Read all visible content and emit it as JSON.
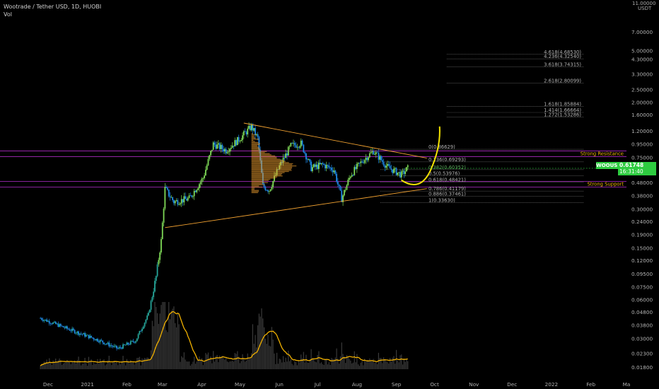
{
  "header": {
    "title": "Wootrade / Tether USD, 1D, HUOBI",
    "indicator": "Vol"
  },
  "price_axis": {
    "currency": "USDT",
    "top_value": "11.00000"
  },
  "ticker": {
    "symbol": "WOOUSDT",
    "last_price": "0.61748",
    "countdown": "16:31:40"
  },
  "chart_data": {
    "type": "candlestick",
    "title": "Wootrade / Tether USD, 1D, HUOBI",
    "y_scale": "log",
    "ylim": [
      0.0155,
      12.0
    ],
    "y_ticks": [
      "7.00000",
      "5.00000",
      "4.30000",
      "3.30000",
      "2.50000",
      "2.00000",
      "1.60000",
      "1.20000",
      "0.95000",
      "0.75000",
      "0.60000",
      "0.48000",
      "0.38000",
      "0.30000",
      "0.24000",
      "0.19000",
      "0.15000",
      "0.12000",
      "0.09500",
      "0.07500",
      "0.06000",
      "0.04800",
      "0.03800",
      "0.03000",
      "0.02300",
      "0.01800"
    ],
    "x_ticks": [
      "Dec",
      "2021",
      "Feb",
      "Mar",
      "Apr",
      "May",
      "Jun",
      "Jul",
      "Aug",
      "Sep",
      "Oct",
      "Nov",
      "Dec",
      "2022",
      "Feb",
      "Ma"
    ],
    "price_path": [
      {
        "date": "2020-11-25",
        "close": 0.043
      },
      {
        "date": "2020-12-15",
        "close": 0.036
      },
      {
        "date": "2021-01-10",
        "close": 0.029
      },
      {
        "date": "2021-01-25",
        "close": 0.025
      },
      {
        "date": "2021-02-08",
        "close": 0.029
      },
      {
        "date": "2021-02-18",
        "close": 0.046
      },
      {
        "date": "2021-02-24",
        "close": 0.09
      },
      {
        "date": "2021-02-28",
        "close": 0.17
      },
      {
        "date": "2021-03-03",
        "close": 0.43
      },
      {
        "date": "2021-03-10",
        "close": 0.34
      },
      {
        "date": "2021-03-22",
        "close": 0.36
      },
      {
        "date": "2021-04-02",
        "close": 0.52
      },
      {
        "date": "2021-04-10",
        "close": 0.95
      },
      {
        "date": "2021-04-20",
        "close": 0.85
      },
      {
        "date": "2021-05-01",
        "close": 1.05
      },
      {
        "date": "2021-05-10",
        "close": 1.3
      },
      {
        "date": "2021-05-15",
        "close": 1.05
      },
      {
        "date": "2021-05-19",
        "close": 0.45
      },
      {
        "date": "2021-05-24",
        "close": 0.42
      },
      {
        "date": "2021-06-01",
        "close": 0.64
      },
      {
        "date": "2021-06-10",
        "close": 0.92
      },
      {
        "date": "2021-06-18",
        "close": 0.96
      },
      {
        "date": "2021-06-26",
        "close": 0.62
      },
      {
        "date": "2021-07-05",
        "close": 0.66
      },
      {
        "date": "2021-07-14",
        "close": 0.6
      },
      {
        "date": "2021-07-20",
        "close": 0.36
      },
      {
        "date": "2021-07-27",
        "close": 0.55
      },
      {
        "date": "2021-08-05",
        "close": 0.7
      },
      {
        "date": "2021-08-14",
        "close": 0.84
      },
      {
        "date": "2021-08-25",
        "close": 0.63
      },
      {
        "date": "2021-09-05",
        "close": 0.55
      },
      {
        "date": "2021-09-10",
        "close": 0.617
      }
    ],
    "fib_levels": [
      {
        "ratio": "4.618",
        "value": 4.6853
      },
      {
        "ratio": "4.236",
        "value": 4.3254
      },
      {
        "ratio": "3.618",
        "value": 3.74315
      },
      {
        "ratio": "2.618",
        "value": 2.80099
      },
      {
        "ratio": "1.618",
        "value": 1.85884
      },
      {
        "ratio": "1.414",
        "value": 1.66664
      },
      {
        "ratio": "1.272",
        "value": 1.53286
      },
      {
        "ratio": "0",
        "value": 0.86629
      },
      {
        "ratio": "0.236",
        "value": 0.69293
      },
      {
        "ratio": "0.382",
        "value": 0.60352
      },
      {
        "ratio": "0.5",
        "value": 0.53976
      },
      {
        "ratio": "0.618",
        "value": 0.48421
      },
      {
        "ratio": "0.786",
        "value": 0.41179
      },
      {
        "ratio": "0.886",
        "value": 0.37461
      },
      {
        "ratio": "1",
        "value": 0.3363
      }
    ],
    "fib_labels": [
      "4.618(4.68530)",
      "4.236(4.32540)",
      "3.618(3.74315)",
      "2.618(2.80099)",
      "1.618(1.85884)",
      "1.414(1.66664)",
      "1.272(1.53286)",
      "0(0.86629)",
      "0.236(0.69293)",
      "0.382(0.60352)",
      "0.5(0.53976)",
      "0.618(0.48421)",
      "0.786(0.41179)",
      "0.886(0.37461)",
      "1(0.33630)"
    ],
    "horizontal_levels": [
      {
        "label": "Strong Resistance",
        "value": 0.8
      },
      {
        "label": "Strong Support",
        "value": 0.465
      }
    ],
    "trendlines": [
      {
        "from": {
          "date": "2021-05-04",
          "price": 1.38
        },
        "to": {
          "date": "2021-09-25",
          "price": 0.74
        }
      },
      {
        "from": {
          "date": "2021-03-03",
          "price": 0.215
        },
        "to": {
          "date": "2021-09-25",
          "price": 0.43
        }
      }
    ],
    "colors": {
      "up": "#26a69a",
      "down": "#1e88e5",
      "bright_up": "#7ed957",
      "volume_ma": "#f0b000",
      "level": "#9c27b0",
      "trend": "#f0a030",
      "fib": "#808080",
      "projection": "#f5e400",
      "label": "#f0b000"
    }
  }
}
